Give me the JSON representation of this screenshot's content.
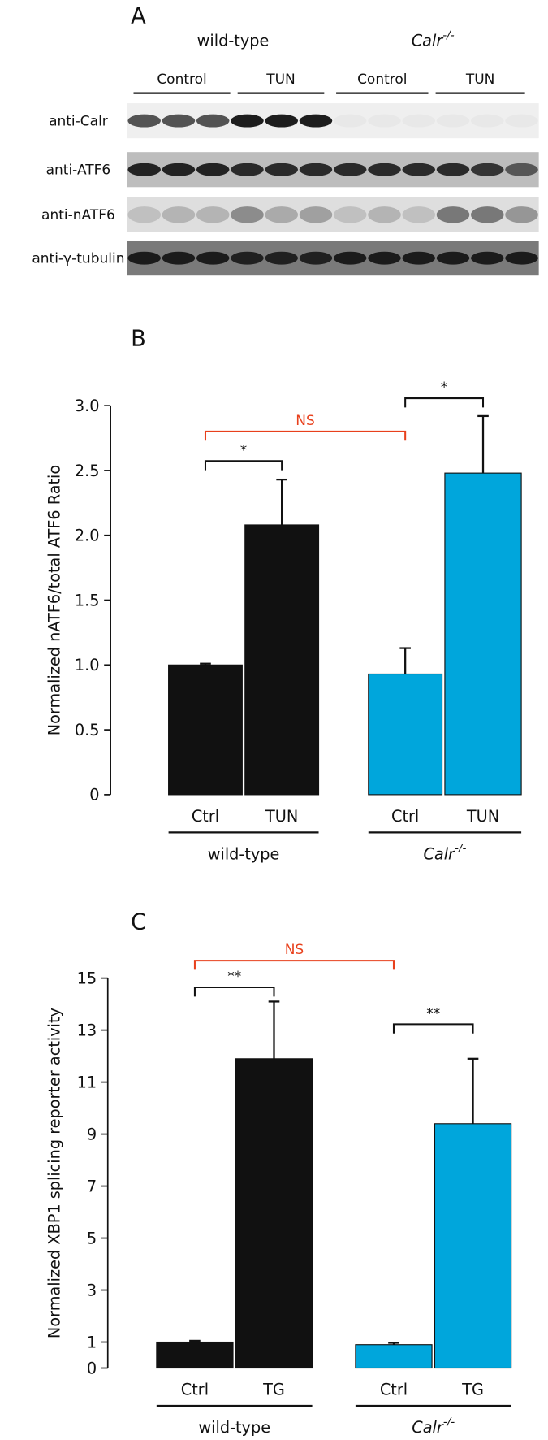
{
  "blot": {
    "panel_label": "A",
    "groups": [
      {
        "name": "wild-type"
      },
      {
        "name": "Calr",
        "sup": "-/-"
      }
    ],
    "conditions": [
      "Control",
      "TUN",
      "Control",
      "TUN"
    ],
    "rows": [
      "anti-Calr",
      "anti-ATF6",
      "anti-nATF6",
      "anti-γ-tubulin"
    ]
  },
  "chart_data": [
    {
      "type": "bar",
      "panel_label": "B",
      "ylabel": "Normalized nATF6/total ATF6 Ratio",
      "categories": [
        "Ctrl",
        "TUN",
        "Ctrl",
        "TUN"
      ],
      "groups": [
        {
          "name": "wild-type"
        },
        {
          "name": "Calr",
          "sup": "-/-"
        }
      ],
      "values": [
        1.0,
        2.08,
        0.93,
        2.48
      ],
      "errors": [
        0.01,
        0.35,
        0.2,
        0.44
      ],
      "colors": [
        "#111111",
        "#111111",
        "#00a6dc",
        "#00a6dc"
      ],
      "ylim": [
        0,
        3
      ],
      "yticks": [
        0,
        0.5,
        {
          "value": 1,
          "label": "1.0"
        },
        1.5,
        {
          "value": 2,
          "label": "2.0"
        },
        2.5,
        {
          "value": 3,
          "label": "3.0"
        }
      ],
      "annotations": [
        {
          "text": "*"
        },
        {
          "text": "*"
        },
        {
          "text": "NS",
          "color": "#e8401c"
        }
      ]
    },
    {
      "type": "bar",
      "panel_label": "C",
      "ylabel": "Normalized XBP1 splicing reporter activity",
      "categories": [
        "Ctrl",
        "TG",
        "Ctrl",
        "TG"
      ],
      "groups": [
        {
          "name": "wild-type"
        },
        {
          "name": "Calr",
          "sup": "-/-"
        }
      ],
      "values": [
        1.0,
        11.9,
        0.9,
        9.4
      ],
      "errors": [
        0.05,
        2.2,
        0.07,
        2.5
      ],
      "colors": [
        "#111111",
        "#111111",
        "#00a6dc",
        "#00a6dc"
      ],
      "ylim": [
        0,
        15
      ],
      "yticks": [
        0,
        1,
        3,
        5,
        7,
        9,
        11,
        13,
        15
      ],
      "annotations": [
        {
          "text": "**"
        },
        {
          "text": "**"
        },
        {
          "text": "NS",
          "color": "#e8401c"
        }
      ]
    }
  ]
}
